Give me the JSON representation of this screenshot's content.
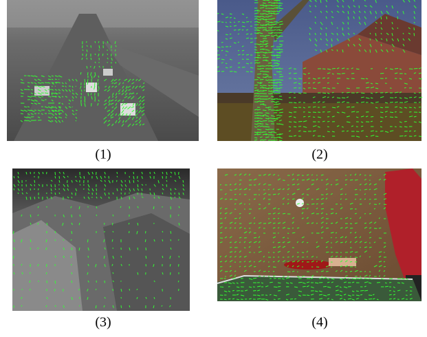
{
  "figure": {
    "panels": [
      {
        "caption": "(1)"
      },
      {
        "caption": "(2)"
      },
      {
        "caption": "(3)"
      },
      {
        "caption": "(4)"
      }
    ]
  }
}
